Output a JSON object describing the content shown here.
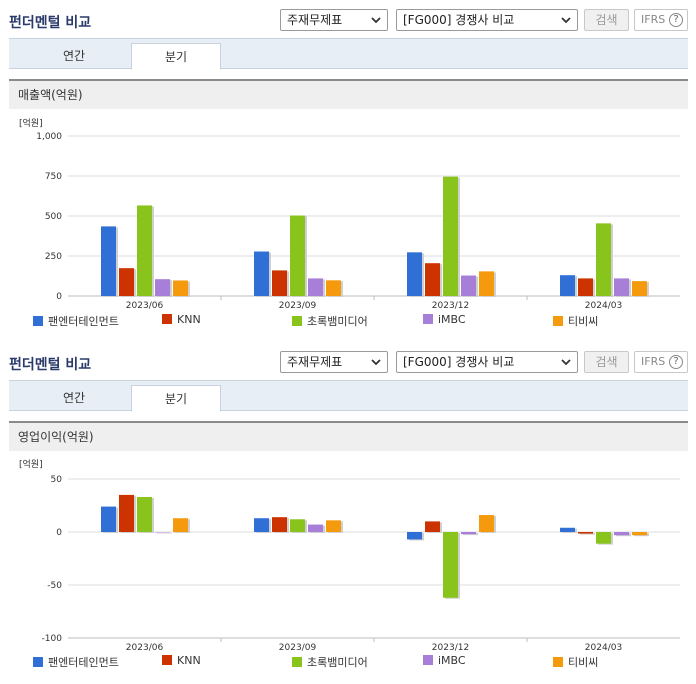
{
  "panels": [
    {
      "title": "펀더멘털 비교",
      "select_type": "주재무제표",
      "select_compare": "[FG000] 경쟁사 비교",
      "search_label": "검색",
      "ifrs_label": "IFRS",
      "help_glyph": "?",
      "tabs": [
        {
          "label": "연간",
          "active": false
        },
        {
          "label": "분기",
          "active": true
        }
      ],
      "section_title": "매출액(억원)",
      "unit_label": "[억원]"
    },
    {
      "title": "펀더멘털 비교",
      "select_type": "주재무제표",
      "select_compare": "[FG000] 경쟁사 비교",
      "search_label": "검색",
      "ifrs_label": "IFRS",
      "help_glyph": "?",
      "tabs": [
        {
          "label": "연간",
          "active": false
        },
        {
          "label": "분기",
          "active": true
        }
      ],
      "section_title": "영업이익(억원)",
      "unit_label": "[억원]"
    }
  ],
  "chart_data": [
    {
      "type": "bar",
      "categories": [
        "2023/06",
        "2023/09",
        "2023/12",
        "2024/03"
      ],
      "ylim": [
        0,
        1000
      ],
      "yticks": [
        0,
        250,
        500,
        750,
        1000
      ],
      "ytick_labels": [
        "0",
        "250",
        "500",
        "750",
        "1,000"
      ],
      "legend_position": "bottom",
      "grid": true,
      "series": [
        {
          "name": "팬엔터테인먼트",
          "color": "#2f6fd6",
          "values": [
            435,
            278,
            273,
            130
          ]
        },
        {
          "name": "KNN",
          "color": "#cc3300",
          "values": [
            174,
            160,
            205,
            110
          ]
        },
        {
          "name": "초록뱀미디어",
          "color": "#88c41c",
          "values": [
            566,
            503,
            746,
            454
          ]
        },
        {
          "name": "iMBC",
          "color": "#a87fd8",
          "values": [
            105,
            110,
            128,
            110
          ]
        },
        {
          "name": "티비씨",
          "color": "#f59a0c",
          "values": [
            97,
            98,
            154,
            93
          ]
        }
      ]
    },
    {
      "type": "bar",
      "categories": [
        "2023/06",
        "2023/09",
        "2023/12",
        "2024/03"
      ],
      "ylim": [
        -100,
        50
      ],
      "yticks": [
        -100,
        -50,
        0,
        50
      ],
      "ytick_labels": [
        "-100",
        "-50",
        "0",
        "50"
      ],
      "legend_position": "bottom",
      "grid": true,
      "series": [
        {
          "name": "팬엔터테인먼트",
          "color": "#2f6fd6",
          "values": [
            24,
            13,
            -7,
            4
          ]
        },
        {
          "name": "KNN",
          "color": "#cc3300",
          "values": [
            35,
            14,
            10,
            -1.5
          ]
        },
        {
          "name": "초록뱀미디어",
          "color": "#88c41c",
          "values": [
            33,
            12,
            -62,
            -11
          ]
        },
        {
          "name": "iMBC",
          "color": "#a87fd8",
          "values": [
            0,
            7,
            -2,
            -3
          ]
        },
        {
          "name": "티비씨",
          "color": "#f59a0c",
          "values": [
            13,
            11,
            16,
            -3
          ]
        }
      ]
    }
  ]
}
